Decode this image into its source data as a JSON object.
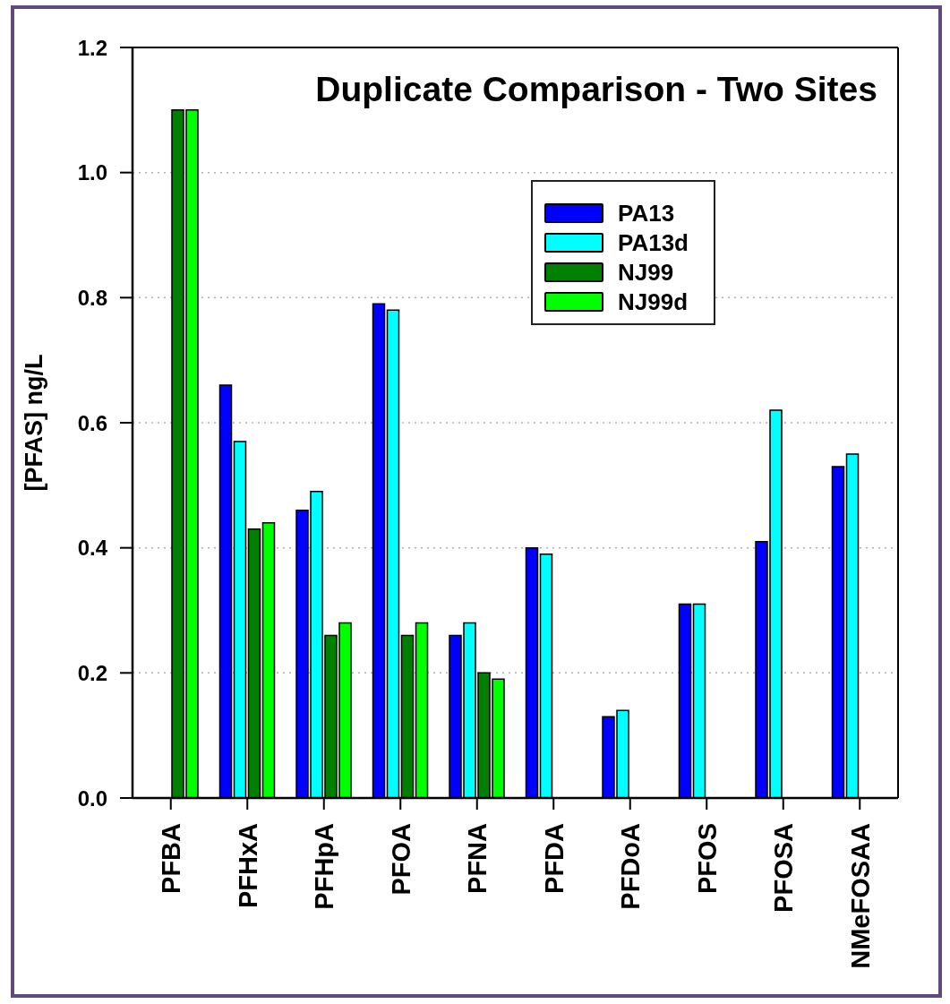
{
  "chart_data": {
    "type": "bar",
    "title": "Duplicate Comparison - Two Sites",
    "ylabel": "[PFAS] ng/L",
    "categories": [
      "PFBA",
      "PFHxA",
      "PFHpA",
      "PFOA",
      "PFNA",
      "PFDA",
      "PFDoA",
      "PFOS",
      "PFOSA",
      "NMeFOSAA"
    ],
    "series": [
      {
        "name": "PA13",
        "color": "#0000ff",
        "values": [
          null,
          0.66,
          0.46,
          0.79,
          0.26,
          0.4,
          0.13,
          0.31,
          0.41,
          0.53
        ]
      },
      {
        "name": "PA13d",
        "color": "#00ffff",
        "values": [
          null,
          0.57,
          0.49,
          0.78,
          0.28,
          0.39,
          0.14,
          0.31,
          0.62,
          0.55
        ]
      },
      {
        "name": "NJ99",
        "color": "#008000",
        "values": [
          1.1,
          0.43,
          0.26,
          0.26,
          0.2,
          null,
          null,
          null,
          null,
          null
        ]
      },
      {
        "name": "NJ99d",
        "color": "#00ff00",
        "values": [
          1.1,
          0.44,
          0.28,
          0.28,
          0.19,
          null,
          null,
          null,
          null,
          null
        ]
      }
    ],
    "ylim": [
      0,
      1.2
    ],
    "yticks": [
      {
        "value": 0,
        "label": "0.0"
      },
      0.2,
      0.4,
      0.6,
      0.8,
      {
        "value": 1,
        "label": "1.0"
      },
      1.2
    ],
    "grid": "y",
    "legend": "top right"
  }
}
